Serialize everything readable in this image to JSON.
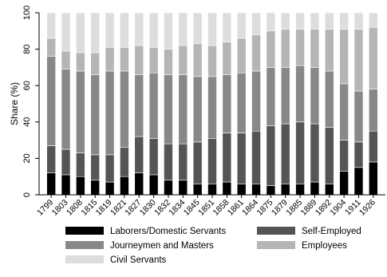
{
  "chart_data": {
    "type": "bar",
    "stacked": true,
    "orientation": "vertical",
    "ylabel": "Share (%)",
    "xlabel": "",
    "ylim": [
      0,
      100
    ],
    "yticks": [
      0,
      20,
      40,
      60,
      80,
      100
    ],
    "grid": false,
    "legend_position": "bottom",
    "categories": [
      "1799",
      "1803",
      "1808",
      "1815",
      "1819",
      "1821",
      "1827",
      "1830",
      "1832",
      "1834",
      "1845",
      "1851",
      "1858",
      "1861",
      "1864",
      "1875",
      "1879",
      "1885",
      "1889",
      "1892",
      "1904",
      "1911",
      "1926"
    ],
    "series": [
      {
        "name": "Laborers/Domestic Servants",
        "color": "#000000",
        "values": [
          12,
          11,
          10,
          8,
          7,
          10,
          12,
          11,
          8,
          8,
          6,
          6,
          7,
          6,
          6,
          5,
          6,
          6,
          7,
          6,
          13,
          15,
          18
        ]
      },
      {
        "name": "Self-Employed",
        "color": "#555555",
        "values": [
          15,
          14,
          13,
          14,
          15,
          16,
          20,
          20,
          20,
          20,
          23,
          25,
          27,
          28,
          29,
          33,
          33,
          34,
          32,
          31,
          17,
          14,
          17
        ]
      },
      {
        "name": "Journeymen and Masters",
        "color": "#888888",
        "values": [
          49,
          44,
          45,
          44,
          46,
          42,
          34,
          36,
          38,
          38,
          36,
          34,
          32,
          33,
          33,
          32,
          31,
          31,
          31,
          31,
          31,
          28,
          23
        ]
      },
      {
        "name": "Employees",
        "color": "#b5b5b5",
        "values": [
          10,
          10,
          10,
          12,
          13,
          13,
          16,
          14,
          14,
          16,
          18,
          17,
          18,
          19,
          20,
          20,
          21,
          20,
          21,
          23,
          30,
          34,
          34
        ]
      },
      {
        "name": "Civil Servants",
        "color": "#dddddd",
        "values": [
          14,
          21,
          22,
          22,
          19,
          19,
          18,
          19,
          20,
          18,
          17,
          18,
          16,
          14,
          12,
          10,
          9,
          9,
          9,
          9,
          9,
          9,
          8
        ]
      }
    ]
  }
}
